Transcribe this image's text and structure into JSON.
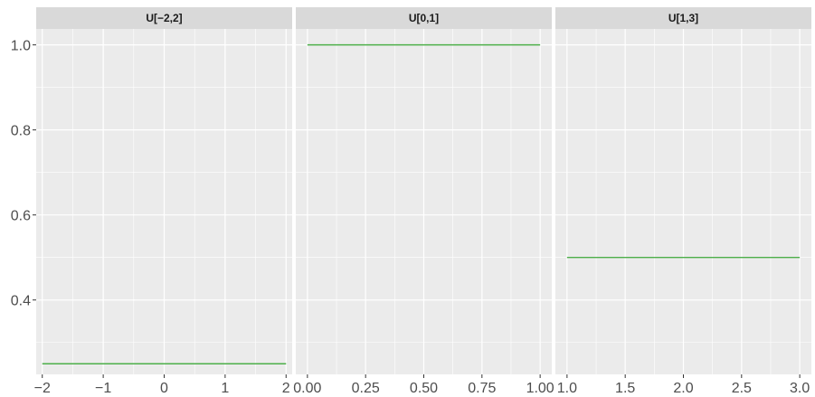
{
  "chart_data": {
    "type": "line",
    "ylim": [
      0.225,
      1.0375
    ],
    "y_ticks": [
      0.4,
      0.6,
      0.8,
      1.0
    ],
    "y_tick_labels": [
      "0.4",
      "0.6",
      "0.8",
      "1.0"
    ],
    "grid": true,
    "line_color": "#4daf4a",
    "panels": [
      {
        "title": "U[−2,2]",
        "xlim": [
          -2.1,
          2.1
        ],
        "x_ticks": [
          -2,
          -1,
          0,
          1,
          2
        ],
        "x_tick_labels": [
          "−2",
          "−1",
          "0",
          "1",
          "2"
        ],
        "x": [
          -2,
          2
        ],
        "y": [
          0.25,
          0.25
        ]
      },
      {
        "title": "U[0,1]",
        "xlim": [
          -0.05,
          1.05
        ],
        "x_ticks": [
          0,
          0.25,
          0.5,
          0.75,
          1
        ],
        "x_tick_labels": [
          "0.00",
          "0.25",
          "0.50",
          "0.75",
          "1.00"
        ],
        "x": [
          0,
          1
        ],
        "y": [
          1.0,
          1.0
        ]
      },
      {
        "title": "U[1,3]",
        "xlim": [
          0.9,
          3.1
        ],
        "x_ticks": [
          1,
          1.5,
          2,
          2.5,
          3
        ],
        "x_tick_labels": [
          "1.0",
          "1.5",
          "2.0",
          "2.5",
          "3.0"
        ],
        "x": [
          1,
          3
        ],
        "y": [
          0.5,
          0.5
        ]
      }
    ]
  }
}
